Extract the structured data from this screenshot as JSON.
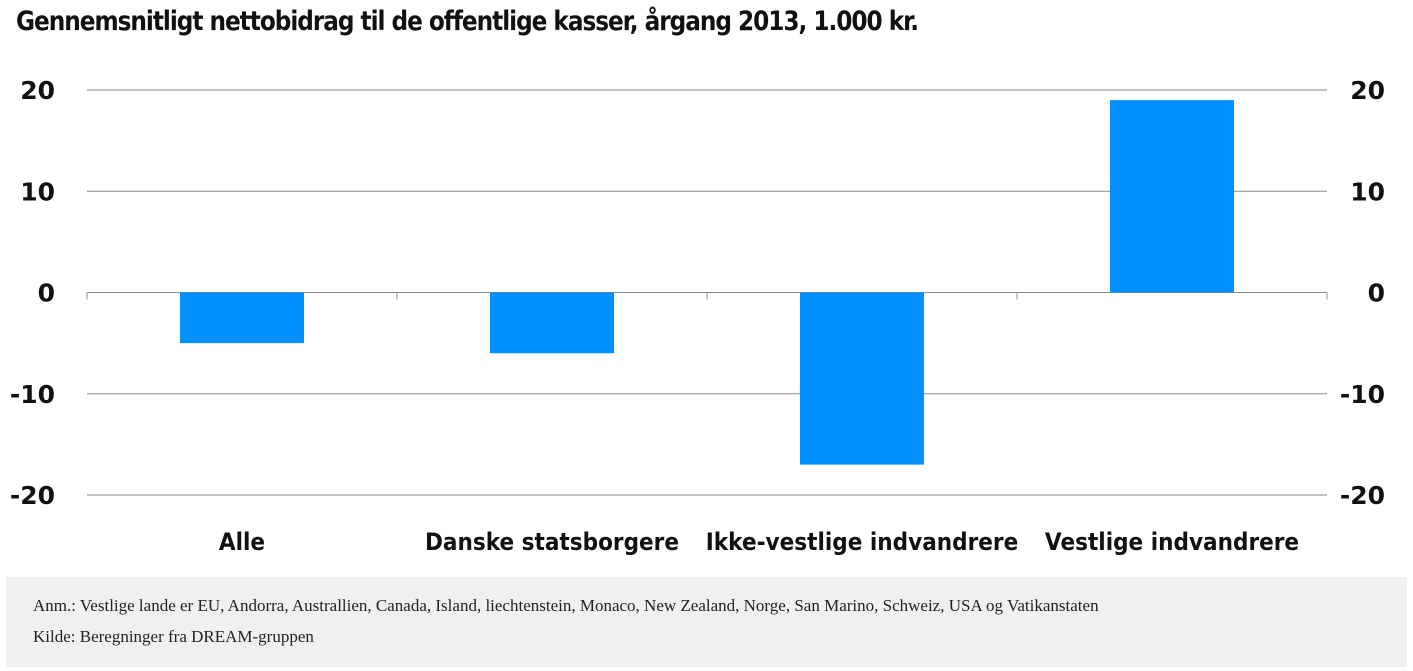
{
  "chart_data": {
    "type": "bar",
    "title": "Gennemsnitligt nettobidrag til de offentlige kasser, årgang 2013, 1.000 kr.",
    "categories": [
      "Alle",
      "Danske statsborgere",
      "Ikke-vestlige indvandrere",
      "Vestlige indvandrere"
    ],
    "values": [
      -5,
      -6,
      -17,
      19
    ],
    "ylim": [
      -20,
      20
    ],
    "yticks": [
      20,
      10,
      0,
      -10,
      -20
    ],
    "ytick_labels": [
      "20",
      "10",
      "0",
      "-10",
      "-20"
    ],
    "xlabel": "",
    "ylabel": "",
    "grid": true,
    "secondary_axis": true,
    "bar_color": "#0090ff"
  },
  "footer": {
    "note": "Anm.: Vestlige lande er EU, Andorra, Australlien, Canada, Island, liechtenstein, Monaco, New Zealand, Norge, San Marino, Schweiz, USA og Vatikanstaten",
    "source": "Kilde: Beregninger fra DREAM-gruppen"
  }
}
